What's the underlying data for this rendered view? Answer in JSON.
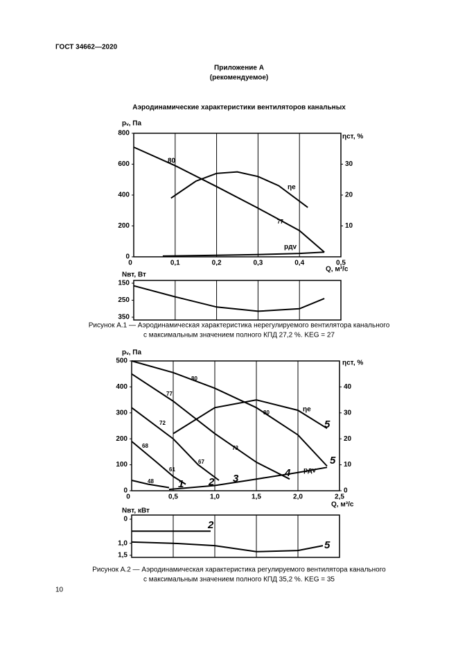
{
  "header": {
    "title": "ГОСТ 34662—2020"
  },
  "appendix": {
    "title": "Приложение А",
    "note": "(рекомендуемое)"
  },
  "heading": "Аэродинамические характеристики вентиляторов канальных",
  "figures": [
    {
      "main": {
        "type": "line",
        "y_label": "pᵥ, Па",
        "y2_label": "ηст, %",
        "x_label": "Q, м³/с",
        "xlim": [
          0,
          0.5
        ],
        "ylim": [
          0,
          800
        ],
        "y2lim": [
          0,
          40
        ],
        "xticks": [
          0,
          {
            "value": 0.1,
            "label": "0,1"
          },
          {
            "value": 0.2,
            "label": "0,2"
          },
          {
            "value": 0.3,
            "label": "0,3"
          },
          {
            "value": 0.4,
            "label": "0,4"
          },
          {
            "value": 0.5,
            "label": "0,5"
          }
        ],
        "yticks": [
          0,
          200,
          400,
          600,
          800
        ],
        "y2ticks": [
          10,
          20,
          30
        ],
        "grid": "x",
        "series": [
          {
            "color": "#000",
            "x": [
              0,
              0.1,
              0.2,
              0.3,
              0.4,
              0.46
            ],
            "values": [
              710,
              590,
              455,
              315,
              170,
              30
            ]
          },
          {
            "color": "#000",
            "axis": "y2",
            "x": [
              0.09,
              0.15,
              0.2,
              0.25,
              0.3,
              0.35,
              0.42
            ],
            "values": [
              19,
              24.5,
              27,
              27.5,
              26,
              23,
              16
            ]
          },
          {
            "color": "#000",
            "x": [
              0.07,
              0.2,
              0.3,
              0.4,
              0.46
            ],
            "values": [
              5,
              10,
              15,
              22,
              30
            ]
          }
        ],
        "annotations": [
          "80",
          "ηе",
          "77",
          "pдv"
        ]
      },
      "power": {
        "type": "line",
        "y_label": "Nвт, Вт",
        "ylim": [
          350,
          150
        ],
        "yticks": [
          150,
          250,
          350
        ],
        "series": [
          {
            "color": "#000",
            "x": [
              0,
              0.1,
              0.2,
              0.3,
              0.4,
              0.46
            ],
            "values": [
              165,
              230,
              290,
              315,
              300,
              240
            ]
          }
        ]
      },
      "caption": [
        "Рисунок А.1 — Аэродинамическая характеристика нерегулируемого вентилятора канального",
        "с максимальным значением полного КПД 27,2 %. KEG = 27"
      ]
    },
    {
      "main": {
        "type": "line",
        "y_label": "pᵥ, Па",
        "y2_label": "ηст, %",
        "x_label": "Q, м³/с",
        "xlim": [
          0,
          2.5
        ],
        "ylim": [
          0,
          500
        ],
        "y2lim": [
          0,
          50
        ],
        "xticks": [
          0,
          {
            "value": 0.5,
            "label": "0,5"
          },
          {
            "value": 1.0,
            "label": "1,0"
          },
          {
            "value": 1.5,
            "label": "1,5"
          },
          {
            "value": 2.0,
            "label": "2,0"
          },
          {
            "value": 2.5,
            "label": "2,5"
          }
        ],
        "yticks": [
          0,
          100,
          200,
          300,
          400,
          500
        ],
        "y2ticks": [
          0,
          10,
          20,
          30,
          40
        ],
        "grid": "x",
        "series": [
          {
            "color": "#000",
            "x": [
              0,
              0.5,
              1,
              1.5,
              2,
              2.35
            ],
            "values": [
              500,
              455,
              395,
              320,
              215,
              95
            ]
          },
          {
            "color": "#000",
            "x": [
              0,
              0.5,
              1,
              1.5,
              1.9
            ],
            "values": [
              450,
              345,
              220,
              110,
              45
            ]
          },
          {
            "color": "#000",
            "x": [
              0,
              0.5,
              0.8,
              1.05
            ],
            "values": [
              320,
              200,
              100,
              40
            ]
          },
          {
            "color": "#000",
            "x": [
              0,
              0.3,
              0.5,
              0.65
            ],
            "values": [
              190,
              110,
              55,
              25
            ]
          },
          {
            "color": "#000",
            "x": [
              0,
              0.2,
              0.45
            ],
            "values": [
              40,
              25,
              12
            ]
          },
          {
            "color": "#000",
            "x": [
              0.45,
              1,
              1.5,
              2,
              2.35
            ],
            "values": [
              5,
              20,
              45,
              70,
              90
            ]
          },
          {
            "color": "#000",
            "axis": "y2",
            "x": [
              0.5,
              1,
              1.5,
              2,
              2.35
            ],
            "values": [
              22,
              32,
              35,
              31,
              24
            ]
          }
        ],
        "annotations": [
          "80",
          "77",
          "72",
          "68",
          "48",
          "61",
          "67",
          "73",
          "80",
          "ηе",
          "5",
          "5",
          "1",
          "2",
          "3",
          "4",
          "pдv"
        ]
      },
      "power": {
        "type": "line",
        "y_label": "Nвт, кВт",
        "ylim": [
          1.5,
          0
        ],
        "yticks": [
          0,
          {
            "value": 1.0,
            "label": "1,0"
          },
          {
            "value": 1.5,
            "label": "1,5"
          }
        ],
        "series": [
          {
            "color": "#000",
            "x": [
              0,
              0.95
            ],
            "values": [
              0.5,
              0.5
            ]
          },
          {
            "color": "#000",
            "x": [
              0,
              0.5,
              1,
              1.5,
              2,
              2.3
            ],
            "values": [
              0.95,
              1.0,
              1.1,
              1.35,
              1.3,
              1.1
            ]
          }
        ],
        "annotations": [
          "2",
          "5"
        ]
      },
      "caption": [
        "Рисунок А.2 — Аэродинамическая характеристика регулируемого вентилятора канального",
        "с максимальным значением полного КПД 35,2 %. KEG = 35"
      ]
    }
  ],
  "page_number": "10"
}
